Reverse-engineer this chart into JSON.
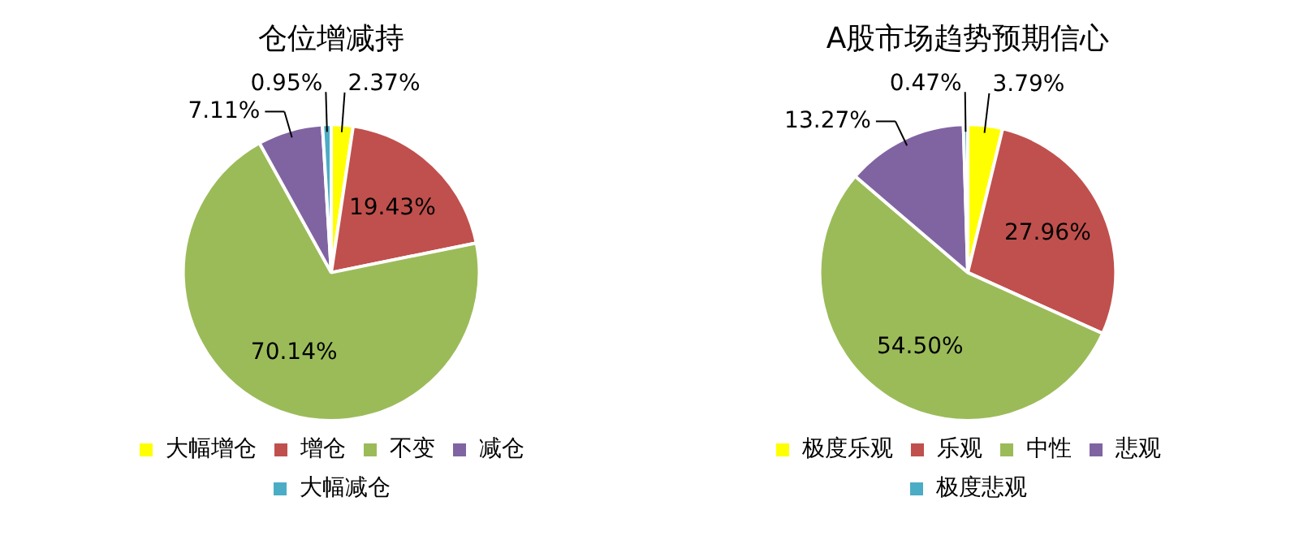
{
  "chart_data": [
    {
      "type": "pie",
      "title": "仓位增减持",
      "categories": [
        "大幅增仓",
        "增仓",
        "不变",
        "减仓",
        "大幅减仓"
      ],
      "values": [
        2.37,
        19.43,
        70.14,
        7.11,
        0.95
      ],
      "value_labels": [
        "2.37%",
        "19.43%",
        "70.14%",
        "7.11%",
        "0.95%"
      ],
      "colors": [
        "#ffff00",
        "#c0504d",
        "#9bbb59",
        "#8064a2",
        "#4bacc6"
      ],
      "legend": "bottom"
    },
    {
      "type": "pie",
      "title": "A股市场趋势预期信心",
      "categories": [
        "极度乐观",
        "乐观",
        "中性",
        "悲观",
        "极度悲观"
      ],
      "values": [
        3.79,
        27.96,
        54.5,
        13.27,
        0.47
      ],
      "value_labels": [
        "3.79%",
        "27.96%",
        "54.50%",
        "13.27%",
        "0.47%"
      ],
      "colors": [
        "#ffff00",
        "#c0504d",
        "#9bbb59",
        "#8064a2",
        "#4bacc6"
      ],
      "legend": "bottom"
    }
  ]
}
